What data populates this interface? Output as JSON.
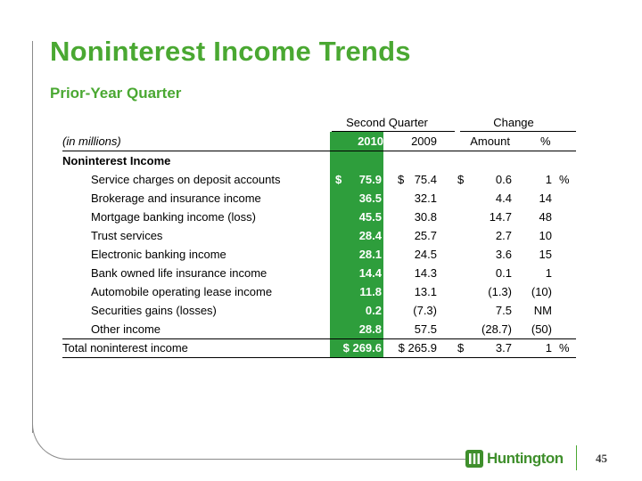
{
  "title": "Noninterest Income Trends",
  "subtitle": "Prior-Year Quarter",
  "header": {
    "group_second_quarter": "Second Quarter",
    "group_change": "Change",
    "units": "(in millions)",
    "col_2010": "2010",
    "col_2009": "2009",
    "col_amount": "Amount",
    "col_pct": "%"
  },
  "section_label": "Noninterest Income",
  "rows": [
    {
      "label": "Service charges on deposit accounts",
      "v2010": "75.9",
      "v2009": "75.4",
      "amount": "0.6",
      "pct": "1",
      "dollar2010": "$",
      "dollar2009": "$",
      "dollar_amt": "$",
      "pctsign": "%"
    },
    {
      "label": "Brokerage and insurance income",
      "v2010": "36.5",
      "v2009": "32.1",
      "amount": "4.4",
      "pct": "14"
    },
    {
      "label": "Mortgage banking income (loss)",
      "v2010": "45.5",
      "v2009": "30.8",
      "amount": "14.7",
      "pct": "48"
    },
    {
      "label": "Trust services",
      "v2010": "28.4",
      "v2009": "25.7",
      "amount": "2.7",
      "pct": "10"
    },
    {
      "label": "Electronic banking income",
      "v2010": "28.1",
      "v2009": "24.5",
      "amount": "3.6",
      "pct": "15"
    },
    {
      "label": "Bank owned life insurance income",
      "v2010": "14.4",
      "v2009": "14.3",
      "amount": "0.1",
      "pct": "1"
    },
    {
      "label": "Automobile operating lease income",
      "v2010": "11.8",
      "v2009": "13.1",
      "amount": "(1.3)",
      "pct": "(10)"
    },
    {
      "label": "Securities gains (losses)",
      "v2010": "0.2",
      "v2009": "(7.3)",
      "amount": "7.5",
      "pct": "NM"
    },
    {
      "label": "Other income",
      "v2010": "28.8",
      "v2009": "57.5",
      "amount": "(28.7)",
      "pct": "(50)"
    }
  ],
  "total": {
    "label": "Total noninterest income",
    "v2010": "$ 269.6",
    "v2009": "$ 265.9",
    "dollar_amt": "$",
    "amount": "3.7",
    "pct": "1",
    "pctsign": "%"
  },
  "footer": {
    "logo_text": "Huntington",
    "page_number": "45"
  },
  "colors": {
    "brand_green": "#4aa832",
    "column_highlight": "#2e9e3c"
  }
}
